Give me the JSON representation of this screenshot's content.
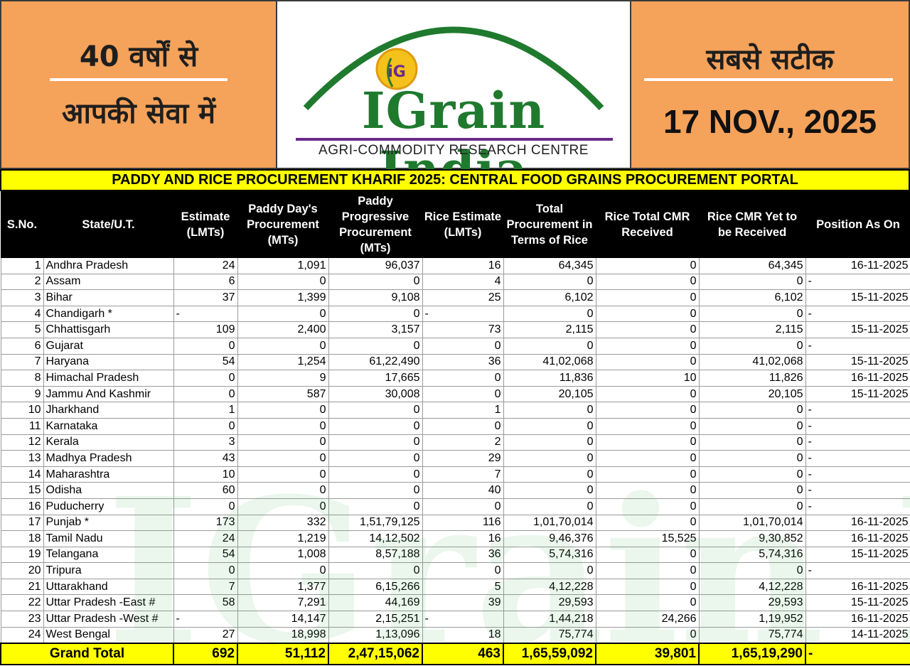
{
  "header": {
    "left_line1": "40 वर्षों से",
    "left_line2": "आपकी सेवा में",
    "right_line1": "सबसे सटीक",
    "date": "17 NOV., 2025",
    "logo_name": "IGrain India",
    "logo_tagline": "AGRI-COMMODITY RESEARCH CENTRE",
    "logo_emblem": "iG"
  },
  "title": "PADDY AND RICE PROCUREMENT KHARIF 2025: CENTRAL FOOD GRAINS PROCUREMENT PORTAL",
  "columns": [
    "S.No.",
    "State/U.T.",
    "Estimate (LMTs)",
    "Paddy Day's Procurement (MTs)",
    "Paddy Progressive Procurement (MTs)",
    "Rice Estimate (LMTs)",
    "Total Procurement in Terms of Rice",
    "Rice Total CMR Received",
    "Rice CMR Yet to be Received",
    "Position As On"
  ],
  "rows": [
    {
      "sno": "1",
      "state": "Andhra Pradesh",
      "est": "24",
      "day": "1,091",
      "prog": "96,037",
      "rice_est": "16",
      "total": "64,345",
      "cmr": "0",
      "yet": "64,345",
      "pos": "16-11-2025"
    },
    {
      "sno": "2",
      "state": "Assam",
      "est": "6",
      "day": "0",
      "prog": "0",
      "rice_est": "4",
      "total": "0",
      "cmr": "0",
      "yet": "0",
      "pos": "-"
    },
    {
      "sno": "3",
      "state": "Bihar",
      "est": "37",
      "day": "1,399",
      "prog": "9,108",
      "rice_est": "25",
      "total": "6,102",
      "cmr": "0",
      "yet": "6,102",
      "pos": "15-11-2025"
    },
    {
      "sno": "4",
      "state": "Chandigarh *",
      "est": "-",
      "day": "0",
      "prog": "0",
      "rice_est": "-",
      "total": "0",
      "cmr": "0",
      "yet": "0",
      "pos": "-"
    },
    {
      "sno": "5",
      "state": "Chhattisgarh",
      "est": "109",
      "day": "2,400",
      "prog": "3,157",
      "rice_est": "73",
      "total": "2,115",
      "cmr": "0",
      "yet": "2,115",
      "pos": "15-11-2025"
    },
    {
      "sno": "6",
      "state": "Gujarat",
      "est": "0",
      "day": "0",
      "prog": "0",
      "rice_est": "0",
      "total": "0",
      "cmr": "0",
      "yet": "0",
      "pos": "-"
    },
    {
      "sno": "7",
      "state": "Haryana",
      "est": "54",
      "day": "1,254",
      "prog": "61,22,490",
      "rice_est": "36",
      "total": "41,02,068",
      "cmr": "0",
      "yet": "41,02,068",
      "pos": "15-11-2025"
    },
    {
      "sno": "8",
      "state": "Himachal Pradesh",
      "est": "0",
      "day": "9",
      "prog": "17,665",
      "rice_est": "0",
      "total": "11,836",
      "cmr": "10",
      "yet": "11,826",
      "pos": "16-11-2025"
    },
    {
      "sno": "9",
      "state": "Jammu And Kashmir",
      "est": "0",
      "day": "587",
      "prog": "30,008",
      "rice_est": "0",
      "total": "20,105",
      "cmr": "0",
      "yet": "20,105",
      "pos": "15-11-2025"
    },
    {
      "sno": "10",
      "state": "Jharkhand",
      "est": "1",
      "day": "0",
      "prog": "0",
      "rice_est": "1",
      "total": "0",
      "cmr": "0",
      "yet": "0",
      "pos": "-"
    },
    {
      "sno": "11",
      "state": "Karnataka",
      "est": "0",
      "day": "0",
      "prog": "0",
      "rice_est": "0",
      "total": "0",
      "cmr": "0",
      "yet": "0",
      "pos": "-"
    },
    {
      "sno": "12",
      "state": "Kerala",
      "est": "3",
      "day": "0",
      "prog": "0",
      "rice_est": "2",
      "total": "0",
      "cmr": "0",
      "yet": "0",
      "pos": "-"
    },
    {
      "sno": "13",
      "state": "Madhya Pradesh",
      "est": "43",
      "day": "0",
      "prog": "0",
      "rice_est": "29",
      "total": "0",
      "cmr": "0",
      "yet": "0",
      "pos": "-"
    },
    {
      "sno": "14",
      "state": "Maharashtra",
      "est": "10",
      "day": "0",
      "prog": "0",
      "rice_est": "7",
      "total": "0",
      "cmr": "0",
      "yet": "0",
      "pos": "-"
    },
    {
      "sno": "15",
      "state": "Odisha",
      "est": "60",
      "day": "0",
      "prog": "0",
      "rice_est": "40",
      "total": "0",
      "cmr": "0",
      "yet": "0",
      "pos": "-"
    },
    {
      "sno": "16",
      "state": "Puducherry",
      "est": "0",
      "day": "0",
      "prog": "0",
      "rice_est": "0",
      "total": "0",
      "cmr": "0",
      "yet": "0",
      "pos": "-"
    },
    {
      "sno": "17",
      "state": "Punjab *",
      "est": "173",
      "day": "332",
      "prog": "1,51,79,125",
      "rice_est": "116",
      "total": "1,01,70,014",
      "cmr": "0",
      "yet": "1,01,70,014",
      "pos": "16-11-2025"
    },
    {
      "sno": "18",
      "state": "Tamil Nadu",
      "est": "24",
      "day": "1,219",
      "prog": "14,12,502",
      "rice_est": "16",
      "total": "9,46,376",
      "cmr": "15,525",
      "yet": "9,30,852",
      "pos": "16-11-2025"
    },
    {
      "sno": "19",
      "state": "Telangana",
      "est": "54",
      "day": "1,008",
      "prog": "8,57,188",
      "rice_est": "36",
      "total": "5,74,316",
      "cmr": "0",
      "yet": "5,74,316",
      "pos": "15-11-2025"
    },
    {
      "sno": "20",
      "state": "Tripura",
      "est": "0",
      "day": "0",
      "prog": "0",
      "rice_est": "0",
      "total": "0",
      "cmr": "0",
      "yet": "0",
      "pos": "-"
    },
    {
      "sno": "21",
      "state": "Uttarakhand",
      "est": "7",
      "day": "1,377",
      "prog": "6,15,266",
      "rice_est": "5",
      "total": "4,12,228",
      "cmr": "0",
      "yet": "4,12,228",
      "pos": "16-11-2025"
    },
    {
      "sno": "22",
      "state": "Uttar Pradesh -East #",
      "est": "58",
      "day": "7,291",
      "prog": "44,169",
      "rice_est": "39",
      "total": "29,593",
      "cmr": "0",
      "yet": "29,593",
      "pos": "15-11-2025"
    },
    {
      "sno": "23",
      "state": "Uttar Pradesh -West #",
      "est": "-",
      "day": "14,147",
      "prog": "2,15,251",
      "rice_est": "-",
      "total": "1,44,218",
      "cmr": "24,266",
      "yet": "1,19,952",
      "pos": "16-11-2025"
    },
    {
      "sno": "24",
      "state": "West Bengal",
      "est": "27",
      "day": "18,998",
      "prog": "1,13,096",
      "rice_est": "18",
      "total": "75,774",
      "cmr": "0",
      "yet": "75,774",
      "pos": "14-11-2025"
    }
  ],
  "total": {
    "label": "Grand Total",
    "est": "692",
    "day": "51,112",
    "prog": "2,47,15,062",
    "rice_est": "463",
    "total": "1,65,59,092",
    "cmr": "39,801",
    "yet": "1,65,19,290",
    "pos": "-"
  },
  "colors": {
    "orange": "#f5a25a",
    "yellow": "#ffff00",
    "header_bg": "#000000",
    "logo_green": "#1f7a2e",
    "logo_purple": "#6a2a8a"
  }
}
